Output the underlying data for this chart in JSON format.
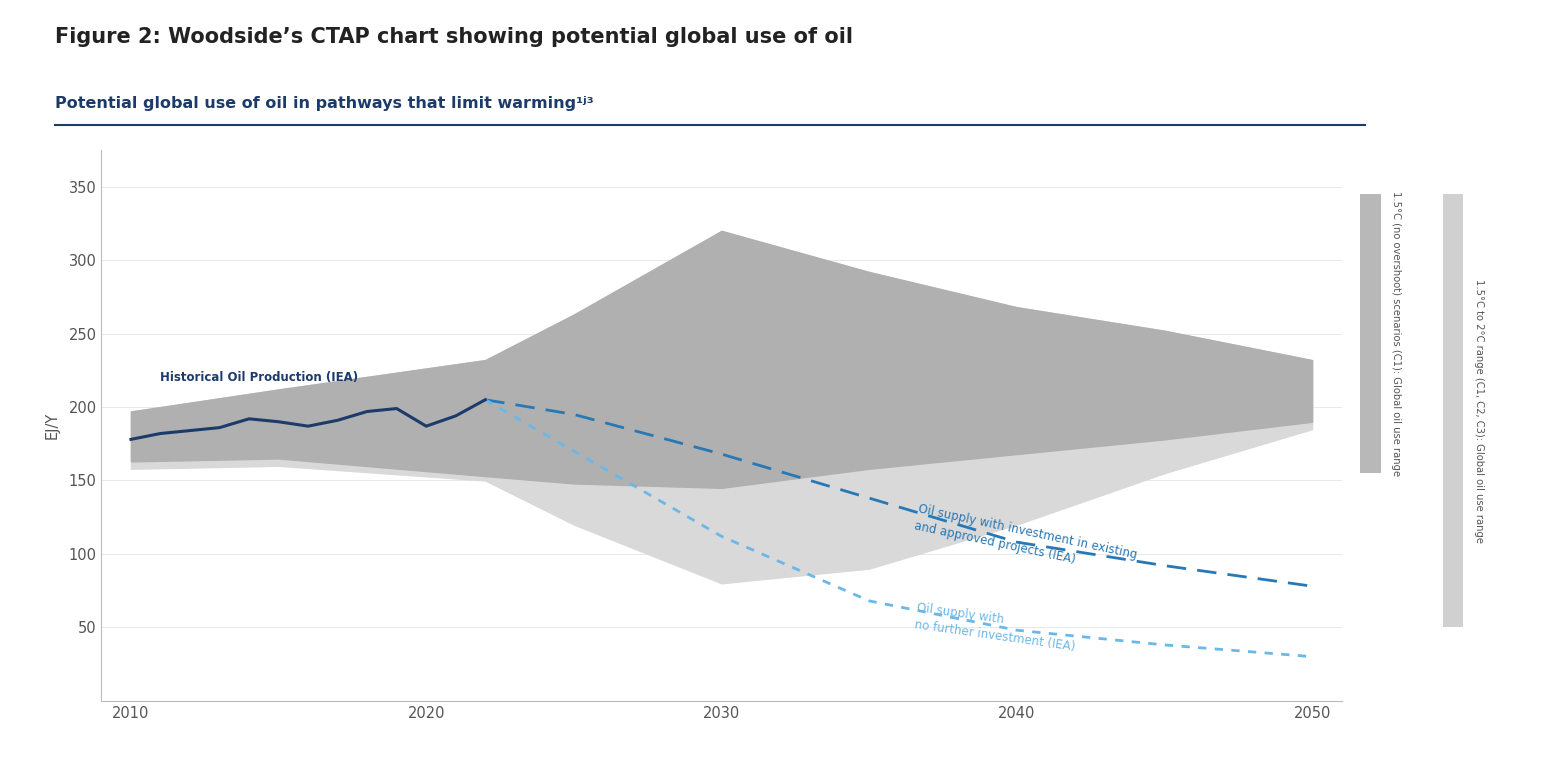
{
  "title": "Figure 2: Woodside’s CTAP chart showing potential global use of oil",
  "subtitle": "Potential global use of oil in pathways that limit warming¹ʲ³",
  "ylabel": "EJ/Y",
  "xlabel_ticks": [
    2010,
    2020,
    2030,
    2040,
    2050
  ],
  "yticks": [
    50,
    100,
    150,
    200,
    250,
    300,
    350
  ],
  "ylim": [
    0,
    375
  ],
  "xlim": [
    2009,
    2051
  ],
  "hist_x": [
    2010,
    2011,
    2012,
    2013,
    2014,
    2015,
    2016,
    2017,
    2018,
    2019,
    2020,
    2021,
    2022
  ],
  "hist_y": [
    178,
    182,
    184,
    186,
    192,
    190,
    187,
    191,
    197,
    199,
    187,
    194,
    205
  ],
  "band1_upper_x": [
    2010,
    2015,
    2022,
    2025,
    2030,
    2035,
    2040,
    2045,
    2050
  ],
  "band1_upper_y": [
    197,
    212,
    232,
    263,
    320,
    292,
    268,
    252,
    232
  ],
  "band1_lower_x": [
    2010,
    2015,
    2022,
    2025,
    2030,
    2035,
    2040,
    2045,
    2050
  ],
  "band1_lower_y": [
    163,
    165,
    153,
    148,
    145,
    158,
    168,
    178,
    190
  ],
  "band2_upper_x": [
    2010,
    2015,
    2022,
    2025,
    2030,
    2035,
    2040,
    2045,
    2050
  ],
  "band2_upper_y": [
    197,
    212,
    232,
    263,
    320,
    292,
    268,
    252,
    232
  ],
  "band2_lower_x": [
    2010,
    2015,
    2022,
    2025,
    2030,
    2035,
    2040,
    2045,
    2050
  ],
  "band2_lower_y": [
    158,
    160,
    150,
    120,
    80,
    90,
    120,
    155,
    185
  ],
  "iea_invest_x": [
    2022,
    2025,
    2030,
    2035,
    2040,
    2045,
    2050
  ],
  "iea_invest_y": [
    205,
    195,
    168,
    138,
    108,
    92,
    78
  ],
  "iea_noinvest_x": [
    2022,
    2025,
    2030,
    2035,
    2040,
    2045,
    2050
  ],
  "iea_noinvest_y": [
    205,
    170,
    112,
    68,
    48,
    38,
    30
  ],
  "band1_color": "#b0b0b0",
  "band2_color": "#d9d9d9",
  "hist_color": "#1c3b6b",
  "iea_invest_color": "#2878b5",
  "iea_noinvest_color": "#6bb8e8",
  "label_hist": "Historical Oil Production (IEA)",
  "label_invest": "Oil supply with investment in existing\nand approved projects (IEA)",
  "label_noinvest": "Oil supply with\nno further investment (IEA)",
  "label_c1": "1.5°C (no overshoot) scenarios (C1): Global oil use range",
  "label_c123": "1.5°C to 2°C range (C1, C2, C3): Global oil use range",
  "bg_color": "#ffffff",
  "subtitle_color": "#1c3b6b",
  "title_color": "#222222",
  "axis_color": "#555555",
  "bar1_color": "#b8b8b8",
  "bar2_color": "#d0d0d0"
}
